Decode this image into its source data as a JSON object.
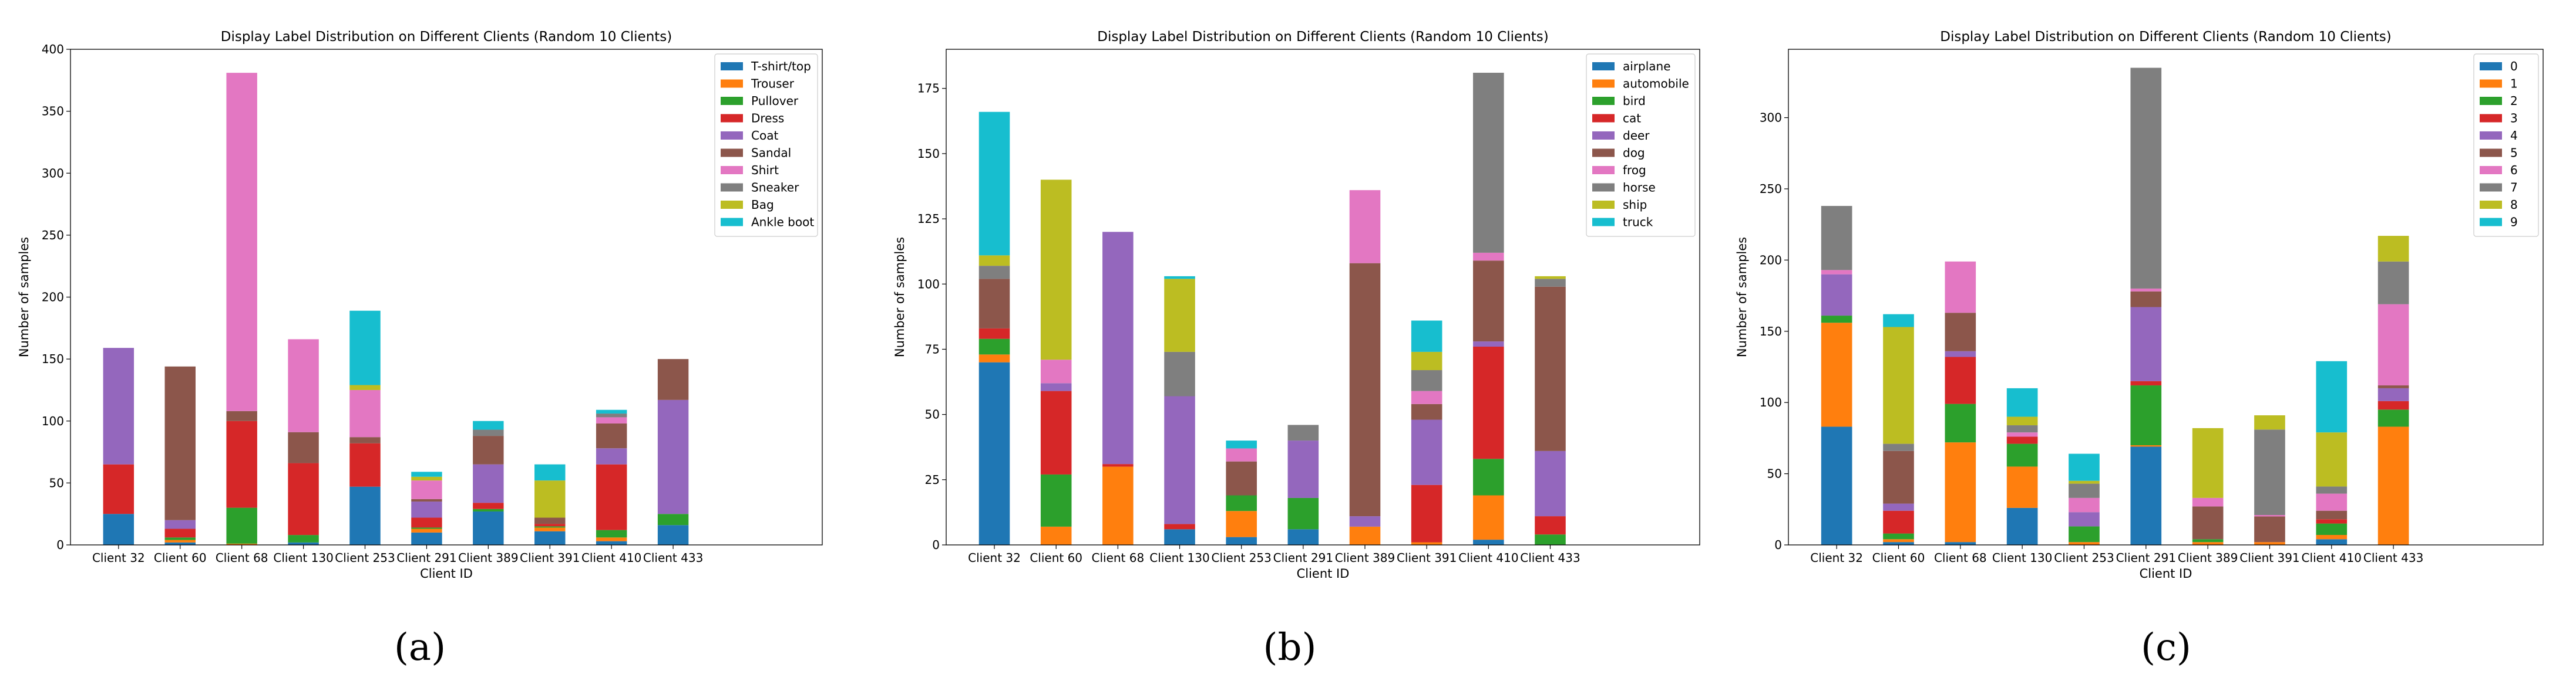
{
  "chart_data": [
    {
      "type": "bar",
      "stacked": true,
      "title": "Display Label Distribution on Different Clients (Random 10 Clients)",
      "xlabel": "Client ID",
      "ylabel": "Number of samples",
      "ylim": [
        0,
        400
      ],
      "yticks": [
        0,
        50,
        100,
        150,
        200,
        250,
        300,
        350,
        400
      ],
      "categories": [
        "Client 32",
        "Client 60",
        "Client 68",
        "Client 130",
        "Client 253",
        "Client 291",
        "Client 389",
        "Client 391",
        "Client 410",
        "Client 433"
      ],
      "legend_position": "top-right",
      "caption": "(a)",
      "series": [
        {
          "name": "T-shirt/top",
          "color": "#1f77b4",
          "values": [
            25,
            2,
            0,
            2,
            47,
            10,
            27,
            11,
            3,
            16
          ]
        },
        {
          "name": "Trouser",
          "color": "#ff7f0e",
          "values": [
            0,
            2,
            1,
            0,
            0,
            3,
            0,
            3,
            3,
            0
          ]
        },
        {
          "name": "Pullover",
          "color": "#2ca02c",
          "values": [
            0,
            2,
            29,
            6,
            0,
            1,
            2,
            1,
            6,
            9
          ]
        },
        {
          "name": "Dress",
          "color": "#d62728",
          "values": [
            40,
            7,
            70,
            58,
            35,
            8,
            5,
            2,
            53,
            0
          ]
        },
        {
          "name": "Coat",
          "color": "#9467bd",
          "values": [
            94,
            7,
            0,
            0,
            0,
            13,
            31,
            0,
            13,
            92
          ]
        },
        {
          "name": "Sandal",
          "color": "#8c564b",
          "values": [
            0,
            124,
            8,
            25,
            5,
            2,
            23,
            5,
            20,
            33
          ]
        },
        {
          "name": "Shirt",
          "color": "#e377c2",
          "values": [
            0,
            0,
            273,
            75,
            38,
            15,
            0,
            0,
            5,
            0
          ]
        },
        {
          "name": "Sneaker",
          "color": "#7f7f7f",
          "values": [
            0,
            0,
            0,
            0,
            0,
            0,
            5,
            0,
            3,
            0
          ]
        },
        {
          "name": "Bag",
          "color": "#bcbd22",
          "values": [
            0,
            0,
            0,
            0,
            4,
            3,
            0,
            30,
            0,
            0
          ]
        },
        {
          "name": "Ankle boot",
          "color": "#17becf",
          "values": [
            0,
            0,
            0,
            0,
            60,
            4,
            7,
            13,
            3,
            0
          ]
        }
      ]
    },
    {
      "type": "bar",
      "stacked": true,
      "title": "Display Label Distribution on Different Clients (Random 10 Clients)",
      "xlabel": "Client ID",
      "ylabel": "Number of samples",
      "ylim": [
        0,
        190
      ],
      "yticks": [
        0,
        25,
        50,
        75,
        100,
        125,
        150,
        175
      ],
      "categories": [
        "Client 32",
        "Client 60",
        "Client 68",
        "Client 130",
        "Client 253",
        "Client 291",
        "Client 389",
        "Client 391",
        "Client 410",
        "Client 433"
      ],
      "legend_position": "top-right",
      "caption": "(b)",
      "series": [
        {
          "name": "airplane",
          "color": "#1f77b4",
          "values": [
            70,
            0,
            0,
            6,
            3,
            6,
            0,
            0,
            2,
            0
          ]
        },
        {
          "name": "automobile",
          "color": "#ff7f0e",
          "values": [
            3,
            7,
            30,
            0,
            10,
            0,
            7,
            1,
            17,
            0
          ]
        },
        {
          "name": "bird",
          "color": "#2ca02c",
          "values": [
            6,
            20,
            0,
            0,
            6,
            12,
            0,
            0,
            14,
            4
          ]
        },
        {
          "name": "cat",
          "color": "#d62728",
          "values": [
            4,
            32,
            1,
            2,
            0,
            0,
            0,
            22,
            43,
            7
          ]
        },
        {
          "name": "deer",
          "color": "#9467bd",
          "values": [
            0,
            3,
            89,
            49,
            0,
            22,
            4,
            25,
            2,
            25
          ]
        },
        {
          "name": "dog",
          "color": "#8c564b",
          "values": [
            19,
            0,
            0,
            0,
            13,
            0,
            97,
            6,
            31,
            63
          ]
        },
        {
          "name": "frog",
          "color": "#e377c2",
          "values": [
            0,
            9,
            0,
            0,
            5,
            0,
            28,
            5,
            3,
            0
          ]
        },
        {
          "name": "horse",
          "color": "#7f7f7f",
          "values": [
            5,
            0,
            0,
            17,
            0,
            6,
            0,
            8,
            69,
            3
          ]
        },
        {
          "name": "ship",
          "color": "#bcbd22",
          "values": [
            4,
            69,
            0,
            28,
            0,
            0,
            0,
            7,
            0,
            1
          ]
        },
        {
          "name": "truck",
          "color": "#17becf",
          "values": [
            55,
            0,
            0,
            1,
            3,
            0,
            0,
            12,
            0,
            0
          ]
        }
      ]
    },
    {
      "type": "bar",
      "stacked": true,
      "title": "Display Label Distribution on Different Clients (Random 10 Clients)",
      "xlabel": "Client ID",
      "ylabel": "Number of samples",
      "ylim": [
        0,
        348
      ],
      "yticks": [
        0,
        50,
        100,
        150,
        200,
        250,
        300
      ],
      "categories": [
        "Client 32",
        "Client 60",
        "Client 68",
        "Client 130",
        "Client 253",
        "Client 291",
        "Client 389",
        "Client 391",
        "Client 410",
        "Client 433"
      ],
      "legend_position": "top-right",
      "caption": "(c)",
      "series": [
        {
          "name": "0",
          "color": "#1f77b4",
          "values": [
            83,
            2,
            2,
            26,
            0,
            69,
            0,
            0,
            4,
            0
          ]
        },
        {
          "name": "1",
          "color": "#ff7f0e",
          "values": [
            73,
            2,
            70,
            29,
            2,
            1,
            2,
            2,
            3,
            83
          ]
        },
        {
          "name": "2",
          "color": "#2ca02c",
          "values": [
            5,
            4,
            27,
            16,
            11,
            42,
            2,
            0,
            8,
            12
          ]
        },
        {
          "name": "3",
          "color": "#d62728",
          "values": [
            0,
            16,
            33,
            5,
            0,
            3,
            0,
            0,
            3,
            6
          ]
        },
        {
          "name": "4",
          "color": "#9467bd",
          "values": [
            29,
            5,
            4,
            0,
            10,
            52,
            0,
            0,
            0,
            9
          ]
        },
        {
          "name": "5",
          "color": "#8c564b",
          "values": [
            0,
            37,
            27,
            0,
            0,
            11,
            23,
            18,
            6,
            2
          ]
        },
        {
          "name": "6",
          "color": "#e377c2",
          "values": [
            3,
            0,
            36,
            3,
            10,
            2,
            6,
            1,
            12,
            57
          ]
        },
        {
          "name": "7",
          "color": "#7f7f7f",
          "values": [
            45,
            5,
            0,
            5,
            10,
            155,
            0,
            60,
            5,
            30
          ]
        },
        {
          "name": "8",
          "color": "#bcbd22",
          "values": [
            0,
            82,
            0,
            6,
            2,
            0,
            49,
            10,
            38,
            18
          ]
        },
        {
          "name": "9",
          "color": "#17becf",
          "values": [
            0,
            9,
            0,
            20,
            19,
            0,
            0,
            0,
            50,
            0
          ]
        }
      ]
    }
  ]
}
